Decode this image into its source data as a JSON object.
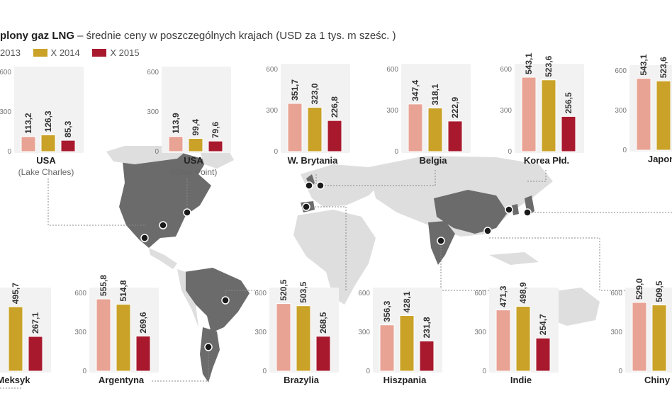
{
  "title": {
    "bold": "plony gaz LNG",
    "rest": " – średnie ceny w poszczególnych krajach (USD za 1 tys. m sześc. )"
  },
  "colors": {
    "s2013": "#e8a394",
    "s2014": "#c9a227",
    "s2015": "#a8192e",
    "map": "#6b6b6b"
  },
  "chart_data": {
    "type": "bar",
    "title": "plony gaz LNG – średnie ceny w poszczególnych krajach (USD za 1 tys. m sześc. )",
    "ylim": [
      0,
      600
    ],
    "yticks": [
      "0",
      "300",
      "600"
    ],
    "series": [
      {
        "name": "2013"
      },
      {
        "name": "X 2014"
      },
      {
        "name": "X 2015"
      }
    ],
    "panels": [
      {
        "country": "USA",
        "sub": "(Lake Charles)",
        "values": [
          113.2,
          126.3,
          85.3
        ],
        "labels": [
          "113,2",
          "126,3",
          "85,3"
        ]
      },
      {
        "country": "USA",
        "sub": "(Cove Point)",
        "values": [
          113.9,
          99.4,
          79.6
        ],
        "labels": [
          "113,9",
          "99,4",
          "79,6"
        ]
      },
      {
        "country": "W. Brytania",
        "sub": "",
        "values": [
          351.7,
          323.0,
          226.8
        ],
        "labels": [
          "351,7",
          "323,0",
          "226,8"
        ]
      },
      {
        "country": "Belgia",
        "sub": "",
        "values": [
          347.4,
          318.1,
          222.9
        ],
        "labels": [
          "347,4",
          "318,1",
          "222,9"
        ]
      },
      {
        "country": "Korea Płd.",
        "sub": "",
        "values": [
          543.1,
          523.6,
          256.5
        ],
        "labels": [
          "543,1",
          "523,6",
          "256,5"
        ]
      },
      {
        "country": "Japon",
        "sub": "",
        "values": [
          543.1,
          523.6
        ],
        "labels": [
          "543,1",
          "523,6"
        ]
      },
      {
        "country": "Meksyk",
        "sub": "",
        "values": [
          null,
          495.7,
          267.1
        ],
        "labels": [
          "",
          "495,7",
          "267,1"
        ]
      },
      {
        "country": "Argentyna",
        "sub": "",
        "values": [
          555.8,
          514.8,
          269.6
        ],
        "labels": [
          "555,8",
          "514,8",
          "269,6"
        ]
      },
      {
        "country": "Brazylia",
        "sub": "",
        "values": [
          520.5,
          503.5,
          268.5
        ],
        "labels": [
          "520,5",
          "503,5",
          "268,5"
        ]
      },
      {
        "country": "Hiszpania",
        "sub": "",
        "values": [
          356.3,
          428.1,
          231.8
        ],
        "labels": [
          "356,3",
          "428,1",
          "231,8"
        ]
      },
      {
        "country": "Indie",
        "sub": "",
        "values": [
          471.3,
          498.9,
          254.7
        ],
        "labels": [
          "471,3",
          "498,9",
          "254,7"
        ]
      },
      {
        "country": "Chiny",
        "sub": "",
        "values": [
          529.0,
          509.5
        ],
        "labels": [
          "529,0",
          "509,5"
        ]
      }
    ]
  }
}
